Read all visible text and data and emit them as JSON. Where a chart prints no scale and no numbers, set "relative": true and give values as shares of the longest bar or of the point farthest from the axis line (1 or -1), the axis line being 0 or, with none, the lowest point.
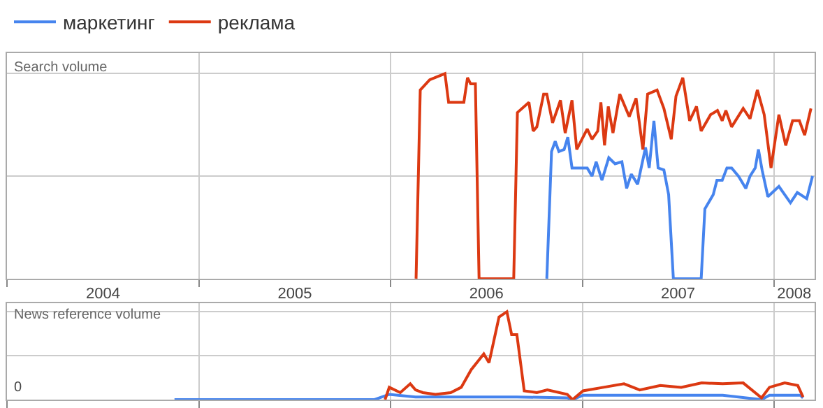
{
  "chart_data": [
    {
      "type": "line",
      "title": "Search volume",
      "relative": true,
      "grid": true,
      "legend": "top left",
      "tick_labels": "x",
      "xlim": [
        "2004-01-01",
        "2008-03-18"
      ],
      "xticks": [
        {
          "value": "2004-01-01",
          "label": null
        },
        {
          "value": "2005-01-01",
          "label": null
        },
        {
          "value": "2006-01-01",
          "label": null
        },
        {
          "value": "2007-01-01",
          "label": null
        },
        {
          "value": "2008-01-01",
          "label": null
        },
        {
          "value": "2004-07-02",
          "label": "2004"
        },
        {
          "value": "2005-07-02",
          "label": "2005"
        },
        {
          "value": "2006-07-02",
          "label": "2006"
        },
        {
          "value": "2007-07-02",
          "label": "2007"
        },
        {
          "value": "2008-02-08",
          "label": "2008"
        }
      ],
      "series": [
        {
          "name": "маркетинг",
          "color": "#4684ee",
          "x": [
            "2006-10-25",
            "2006-11-03",
            "2006-11-10",
            "2006-11-17",
            "2006-11-27",
            "2006-12-04",
            "2006-12-12",
            "2007-01-10",
            "2007-01-19",
            "2007-01-27",
            "2007-02-07",
            "2007-02-20",
            "2007-03-04",
            "2007-03-17",
            "2007-03-26",
            "2007-04-04",
            "2007-04-16",
            "2007-05-01",
            "2007-05-08",
            "2007-05-17",
            "2007-05-25",
            "2007-06-05",
            "2007-06-14",
            "2007-06-23",
            "2007-08-15",
            "2007-08-22",
            "2007-09-07",
            "2007-09-14",
            "2007-09-24",
            "2007-10-03",
            "2007-10-12",
            "2007-10-25",
            "2007-11-08",
            "2007-11-16",
            "2007-11-26",
            "2007-12-02",
            "2007-12-09",
            "2007-12-20",
            "2008-01-10",
            "2008-02-01",
            "2008-02-14",
            "2008-03-03",
            "2008-03-14"
          ],
          "values": [
            0,
            0.62,
            0.67,
            0.62,
            0.63,
            0.69,
            0.54,
            0.54,
            0.5,
            0.57,
            0.48,
            0.59,
            0.56,
            0.57,
            0.44,
            0.51,
            0.46,
            0.64,
            0.54,
            0.77,
            0.54,
            0.53,
            0.41,
            0,
            0,
            0.34,
            0.41,
            0.48,
            0.48,
            0.54,
            0.54,
            0.5,
            0.44,
            0.5,
            0.54,
            0.63,
            0.53,
            0.4,
            0.45,
            0.37,
            0.42,
            0.39,
            0.5
          ]
        },
        {
          "name": "реклама",
          "color": "#dc3912",
          "x": [
            "2006-02-18",
            "2006-02-26",
            "2006-03-16",
            "2006-04-14",
            "2006-04-21",
            "2006-05-20",
            "2006-05-27",
            "2006-06-02",
            "2006-06-11",
            "2006-06-18",
            "2006-08-23",
            "2006-08-30",
            "2006-09-21",
            "2006-09-29",
            "2006-10-06",
            "2006-10-19",
            "2006-10-25",
            "2006-11-05",
            "2006-11-20",
            "2006-11-29",
            "2006-12-12",
            "2006-12-21",
            "2007-01-10",
            "2007-01-19",
            "2007-01-30",
            "2007-02-05",
            "2007-02-12",
            "2007-02-19",
            "2007-02-28",
            "2007-03-13",
            "2007-03-31",
            "2007-04-13",
            "2007-04-26",
            "2007-05-05",
            "2007-05-23",
            "2007-06-05",
            "2007-06-19",
            "2007-06-28",
            "2007-07-11",
            "2007-07-24",
            "2007-08-06",
            "2007-08-15",
            "2007-09-02",
            "2007-09-15",
            "2007-09-24",
            "2007-10-01",
            "2007-10-12",
            "2007-11-03",
            "2007-11-16",
            "2007-11-30",
            "2007-12-13",
            "2007-12-26",
            "2008-01-10",
            "2008-01-23",
            "2008-02-05",
            "2008-02-18",
            "2008-02-28",
            "2008-03-11"
          ],
          "values": [
            0,
            0.92,
            0.97,
            1,
            0.86,
            0.86,
            0.98,
            0.95,
            0.95,
            0,
            0,
            0.81,
            0.86,
            0.72,
            0.74,
            0.9,
            0.9,
            0.76,
            0.87,
            0.71,
            0.87,
            0.63,
            0.73,
            0.68,
            0.72,
            0.86,
            0.65,
            0.84,
            0.71,
            0.9,
            0.79,
            0.88,
            0.63,
            0.9,
            0.92,
            0.83,
            0.68,
            0.89,
            0.98,
            0.77,
            0.84,
            0.72,
            0.8,
            0.82,
            0.77,
            0.82,
            0.74,
            0.83,
            0.78,
            0.92,
            0.8,
            0.54,
            0.8,
            0.65,
            0.77,
            0.77,
            0.7,
            0.83
          ]
        }
      ]
    },
    {
      "type": "line",
      "title": "News reference volume",
      "relative": true,
      "grid": true,
      "tick_labels": false,
      "xlim": [
        "2004-01-01",
        "2008-03-18"
      ],
      "annotations": [
        "0"
      ],
      "xticks": [
        {
          "value": "2004-01-01",
          "label": null
        },
        {
          "value": "2005-01-01",
          "label": null
        },
        {
          "value": "2006-01-01",
          "label": null
        },
        {
          "value": "2007-01-01",
          "label": null
        },
        {
          "value": "2008-01-01",
          "label": null
        }
      ],
      "series": [
        {
          "color": "#4684ee",
          "x": [
            "2004-11-15",
            "2005-12-01",
            "2005-12-29",
            "2006-02-17",
            "2006-05-24",
            "2006-08-29",
            "2006-12-03",
            "2006-12-13",
            "2007-01-02",
            "2007-03-11",
            "2007-06-18",
            "2007-09-25",
            "2007-12-08",
            "2007-12-23",
            "2008-02-20",
            "2008-02-25"
          ],
          "values": [
            0,
            0,
            0.06,
            0.03,
            0.03,
            0.03,
            0.02,
            0,
            0.05,
            0.05,
            0.05,
            0.05,
            0,
            0.05,
            0.05,
            0.02
          ]
        },
        {
          "color": "#dc3912",
          "x": [
            "2005-12-21",
            "2005-12-29",
            "2006-01-19",
            "2006-02-07",
            "2006-02-17",
            "2006-03-03",
            "2006-03-27",
            "2006-04-25",
            "2006-05-15",
            "2006-06-03",
            "2006-06-27",
            "2006-07-07",
            "2006-07-26",
            "2006-08-10",
            "2006-08-19",
            "2006-08-29",
            "2006-09-12",
            "2006-10-06",
            "2006-10-26",
            "2006-12-03",
            "2006-12-13",
            "2007-01-02",
            "2007-02-10",
            "2007-03-21",
            "2007-04-20",
            "2007-05-29",
            "2007-07-08",
            "2007-08-16",
            "2007-09-25",
            "2007-11-03",
            "2007-12-08",
            "2007-12-23",
            "2008-01-21",
            "2008-02-15",
            "2008-02-25"
          ],
          "values": [
            0,
            0.14,
            0.08,
            0.18,
            0.11,
            0.08,
            0.06,
            0.08,
            0.14,
            0.34,
            0.52,
            0.42,
            0.94,
            1,
            0.74,
            0.74,
            0.1,
            0.08,
            0.11,
            0.06,
            0,
            0.1,
            0.14,
            0.18,
            0.11,
            0.16,
            0.14,
            0.19,
            0.18,
            0.19,
            0.02,
            0.14,
            0.19,
            0.16,
            0.03
          ]
        }
      ]
    }
  ]
}
